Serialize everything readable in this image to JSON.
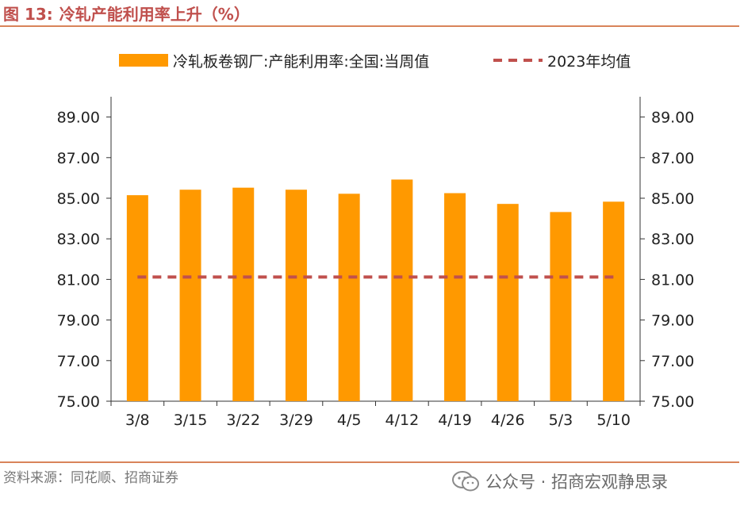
{
  "figure": {
    "number": "图 13:",
    "title": "冷轧产能利用率上升（%）"
  },
  "source": "资料来源：同花顺、招商证券",
  "watermark": "公众号 · 招商宏观静思录",
  "chart_data": {
    "type": "bar",
    "categories": [
      "3/8",
      "3/15",
      "3/22",
      "3/29",
      "4/5",
      "4/12",
      "4/19",
      "4/26",
      "5/3",
      "5/10"
    ],
    "series": [
      {
        "name": "冷轧板卷钢厂:产能利用率:全国:当周值",
        "type": "bar",
        "color": "#ff9900",
        "values": [
          85.15,
          85.42,
          85.52,
          85.42,
          85.22,
          85.92,
          85.25,
          84.72,
          84.32,
          84.83
        ]
      },
      {
        "name": "2023年均值",
        "type": "line",
        "style": "dashed",
        "color": "#c0504d",
        "values": [
          81.12,
          81.12,
          81.12,
          81.12,
          81.12,
          81.12,
          81.12,
          81.12,
          81.12,
          81.12
        ]
      }
    ],
    "ylim": [
      75,
      90
    ],
    "yticks": [
      "75.00",
      "77.00",
      "79.00",
      "81.00",
      "83.00",
      "85.00",
      "87.00",
      "89.00"
    ],
    "secondary_yticks": [
      "75.00",
      "77.00",
      "79.00",
      "81.00",
      "83.00",
      "85.00",
      "87.00",
      "89.00"
    ],
    "grid": false,
    "legend_position": "top"
  }
}
